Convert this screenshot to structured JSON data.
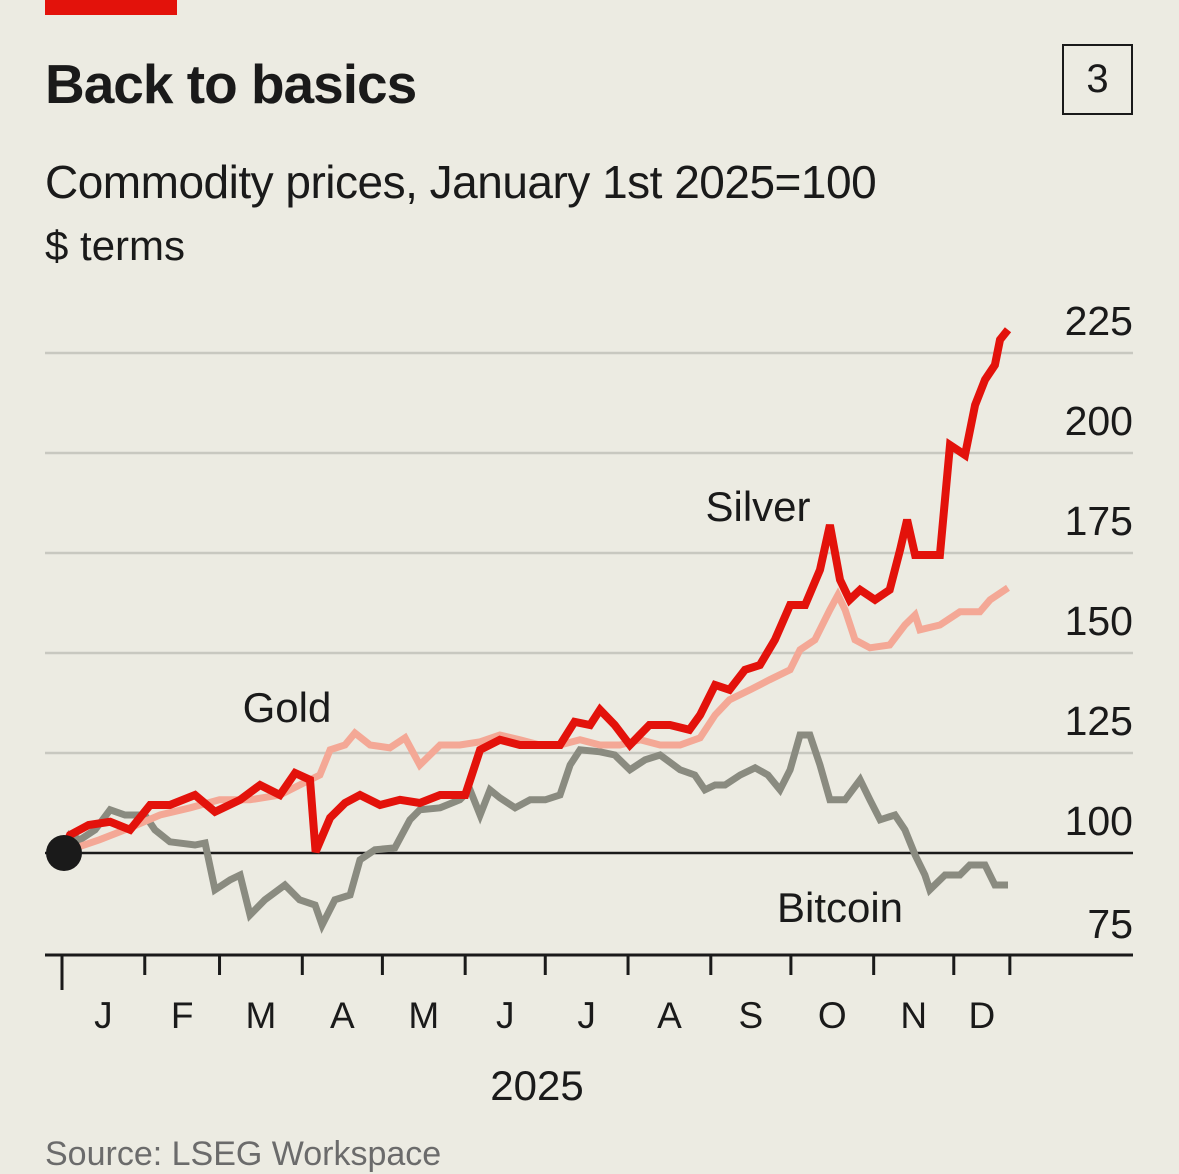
{
  "header": {
    "title": "Back to basics",
    "chart_number": "3",
    "subtitle": "Commodity prices, January 1st 2025=100",
    "units": "$ terms",
    "source": "Source: LSEG Workspace"
  },
  "colors": {
    "background": "#ecebe2",
    "silver": "#e3120b",
    "gold": "#f4a896",
    "bitcoin": "#8a8b80",
    "grid": "#c8c8c0",
    "axis": "#1a1a1a",
    "brand": "#e3120b"
  },
  "chart_data": {
    "type": "line",
    "title": "Back to basics",
    "subtitle": "Commodity prices, January 1st 2025=100",
    "xlabel": "2025",
    "ylabel": "$ terms",
    "ylim": [
      75,
      230
    ],
    "yticks": [
      75,
      100,
      125,
      150,
      175,
      200,
      225
    ],
    "ytick_labels": [
      "75",
      "100",
      "125",
      "150",
      "175",
      "200",
      "225"
    ],
    "x_unit": "day of year 2025",
    "month_labels": [
      "J",
      "F",
      "M",
      "A",
      "M",
      "J",
      "J",
      "A",
      "S",
      "O",
      "N",
      "D"
    ],
    "month_start_days": [
      0,
      31,
      59,
      90,
      120,
      151,
      181,
      212,
      243,
      273,
      304,
      334,
      355
    ],
    "year_label": "2025",
    "baseline": 100,
    "grid": true,
    "series": [
      {
        "name": "Silver",
        "color": "#e3120b",
        "points": [
          [
            0,
            100
          ],
          [
            3,
            104.5
          ],
          [
            10,
            107
          ],
          [
            18,
            107.8
          ],
          [
            25.5,
            105.8
          ],
          [
            33,
            112
          ],
          [
            40.4,
            112
          ],
          [
            49.8,
            114.5
          ],
          [
            57.3,
            110.3
          ],
          [
            66.7,
            113.3
          ],
          [
            74.2,
            117
          ],
          [
            81.6,
            114.5
          ],
          [
            87.3,
            120
          ],
          [
            92.9,
            118.3
          ],
          [
            95,
            100.3
          ],
          [
            100.4,
            108.8
          ],
          [
            106,
            112.5
          ],
          [
            111.6,
            114.5
          ],
          [
            119.1,
            112
          ],
          [
            126.6,
            113.3
          ],
          [
            134,
            112.5
          ],
          [
            141.6,
            114.5
          ],
          [
            151,
            114.5
          ],
          [
            156.6,
            125.8
          ],
          [
            164,
            128.3
          ],
          [
            171.5,
            127
          ],
          [
            179,
            127
          ],
          [
            186.5,
            127
          ],
          [
            192,
            132.8
          ],
          [
            197.8,
            132
          ],
          [
            201.5,
            135.8
          ],
          [
            207,
            132
          ],
          [
            212.7,
            127
          ],
          [
            220,
            132
          ],
          [
            227.7,
            132
          ],
          [
            235,
            130.8
          ],
          [
            239,
            134.5
          ],
          [
            244.6,
            142
          ],
          [
            250,
            140.8
          ],
          [
            255.8,
            145.8
          ],
          [
            261.4,
            147
          ],
          [
            267,
            153.3
          ],
          [
            272.7,
            162
          ],
          [
            278.3,
            162
          ],
          [
            283.9,
            170.8
          ],
          [
            287.6,
            182
          ],
          [
            291.4,
            168.3
          ],
          [
            295,
            163.3
          ],
          [
            298.9,
            165.8
          ],
          [
            304.5,
            163.3
          ],
          [
            310,
            165.8
          ],
          [
            313.9,
            175.8
          ],
          [
            316.5,
            183.3
          ],
          [
            319.5,
            174.5
          ],
          [
            325,
            174.5
          ],
          [
            328.8,
            174.5
          ],
          [
            332.6,
            202
          ],
          [
            338.2,
            199.5
          ],
          [
            342,
            212
          ],
          [
            345.7,
            218.3
          ],
          [
            349.4,
            222
          ],
          [
            351.3,
            228.3
          ],
          [
            354.3,
            230.8
          ]
        ]
      },
      {
        "name": "Gold",
        "color": "#f4a896",
        "points": [
          [
            0,
            100
          ],
          [
            3,
            100.8
          ],
          [
            14,
            103.3
          ],
          [
            25.5,
            106.3
          ],
          [
            36.7,
            109.5
          ],
          [
            48,
            111.3
          ],
          [
            59,
            113.3
          ],
          [
            70.4,
            113.3
          ],
          [
            81.6,
            114.5
          ],
          [
            89,
            117
          ],
          [
            96.6,
            119.5
          ],
          [
            100.4,
            125.8
          ],
          [
            106,
            127
          ],
          [
            109.7,
            130
          ],
          [
            115.4,
            127
          ],
          [
            122.8,
            126.3
          ],
          [
            128.5,
            128.8
          ],
          [
            134,
            122
          ],
          [
            141.6,
            127
          ],
          [
            149,
            127
          ],
          [
            156.6,
            127.8
          ],
          [
            164,
            129.5
          ],
          [
            171.5,
            128.3
          ],
          [
            179,
            127
          ],
          [
            186.5,
            127
          ],
          [
            194,
            128.3
          ],
          [
            201.5,
            127
          ],
          [
            209,
            127
          ],
          [
            216.5,
            128.3
          ],
          [
            224,
            127
          ],
          [
            231.5,
            127
          ],
          [
            239,
            128.8
          ],
          [
            244.6,
            134.5
          ],
          [
            250,
            138.3
          ],
          [
            257.7,
            140.8
          ],
          [
            265,
            143.3
          ],
          [
            272.7,
            145.8
          ],
          [
            276.4,
            150.8
          ],
          [
            282,
            153.3
          ],
          [
            287.6,
            160.8
          ],
          [
            290.6,
            164.5
          ],
          [
            293.3,
            160.8
          ],
          [
            297,
            153.3
          ],
          [
            302.6,
            151.3
          ],
          [
            310,
            152
          ],
          [
            315.7,
            157
          ],
          [
            319.5,
            159.5
          ],
          [
            321.3,
            155.8
          ],
          [
            328.8,
            157
          ],
          [
            336.3,
            160.3
          ],
          [
            343.8,
            160.3
          ],
          [
            347.6,
            163.3
          ],
          [
            354.3,
            166.3
          ]
        ]
      },
      {
        "name": "Bitcoin",
        "color": "#8a8b80",
        "points": [
          [
            0,
            100
          ],
          [
            3,
            104.5
          ],
          [
            6.7,
            103.3
          ],
          [
            12.4,
            105.8
          ],
          [
            18,
            110.8
          ],
          [
            23.6,
            109.5
          ],
          [
            31,
            109.5
          ],
          [
            34.8,
            105.8
          ],
          [
            40.4,
            102.8
          ],
          [
            49.8,
            102
          ],
          [
            53.6,
            102.5
          ],
          [
            57.3,
            90.8
          ],
          [
            63,
            93.3
          ],
          [
            66.7,
            94.5
          ],
          [
            70.4,
            84.5
          ],
          [
            76,
            88.3
          ],
          [
            83.5,
            92
          ],
          [
            89,
            88.3
          ],
          [
            94.8,
            87
          ],
          [
            97.4,
            82
          ],
          [
            102.2,
            88.3
          ],
          [
            107.9,
            89.5
          ],
          [
            111.6,
            98.3
          ],
          [
            117.2,
            100.8
          ],
          [
            124.7,
            101.3
          ],
          [
            130.3,
            108.3
          ],
          [
            134,
            110.8
          ],
          [
            141.6,
            111.3
          ],
          [
            149,
            113.3
          ],
          [
            152.8,
            115.8
          ],
          [
            156.6,
            109.5
          ],
          [
            160.3,
            115.8
          ],
          [
            164,
            113.8
          ],
          [
            169.7,
            111.3
          ],
          [
            175.3,
            113.3
          ],
          [
            181,
            113.3
          ],
          [
            186.5,
            114.5
          ],
          [
            190.3,
            122
          ],
          [
            194,
            125.8
          ],
          [
            201.5,
            125.3
          ],
          [
            207,
            124.5
          ],
          [
            212.7,
            120.8
          ],
          [
            218.4,
            123.3
          ],
          [
            224,
            124.5
          ],
          [
            231.5,
            120.8
          ],
          [
            237,
            119.5
          ],
          [
            240.8,
            115.8
          ],
          [
            244.6,
            117
          ],
          [
            248.3,
            117
          ],
          [
            254,
            119.5
          ],
          [
            259.6,
            121.3
          ],
          [
            264.4,
            119.5
          ],
          [
            268.9,
            115.8
          ],
          [
            272.7,
            120.8
          ],
          [
            276.4,
            129.5
          ],
          [
            280.1,
            129.5
          ],
          [
            283.9,
            122
          ],
          [
            287.6,
            113.3
          ],
          [
            293.3,
            113.3
          ],
          [
            298.9,
            118.3
          ],
          [
            302.6,
            113.3
          ],
          [
            306.4,
            108.3
          ],
          [
            312,
            109.5
          ],
          [
            315.7,
            105.8
          ],
          [
            319.5,
            99.5
          ],
          [
            323.2,
            94.5
          ],
          [
            325,
            90.8
          ],
          [
            330.7,
            94.5
          ],
          [
            336.3,
            94.5
          ],
          [
            340,
            97
          ],
          [
            345.7,
            97
          ],
          [
            349.4,
            92
          ],
          [
            354.3,
            92
          ]
        ]
      }
    ]
  }
}
